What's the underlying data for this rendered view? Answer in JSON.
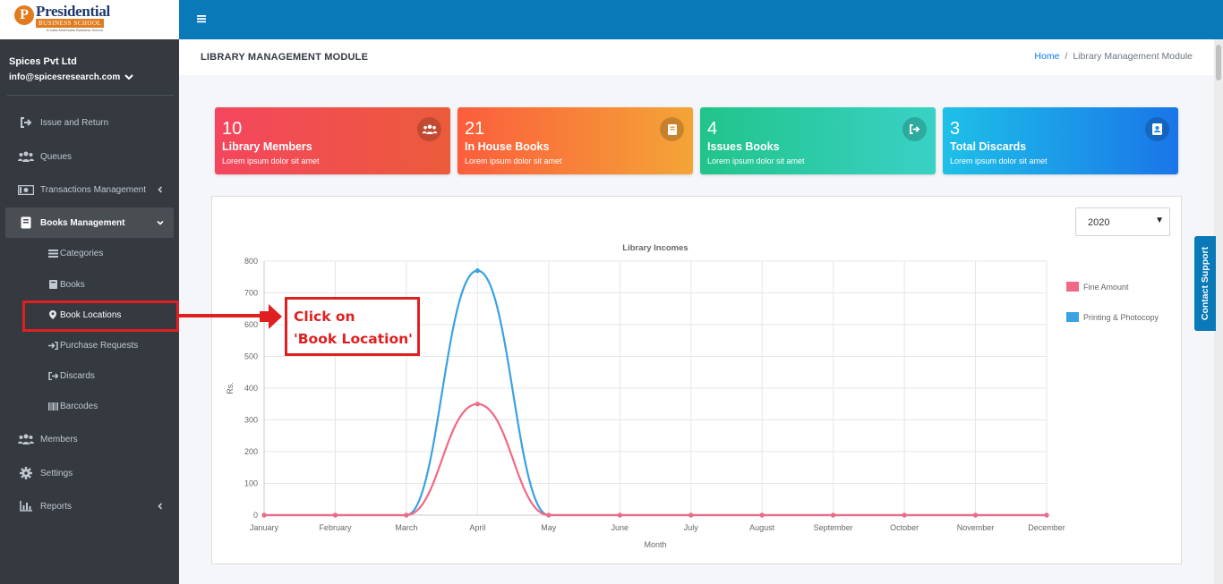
{
  "brand": {
    "logo_letter": "P",
    "logo_title": "Presidential",
    "logo_subtitle": "BUSINESS SCHOOL",
    "logo_tagline": "A India Americans Business School"
  },
  "user": {
    "company": "Spices Pvt Ltd",
    "email": "info@spicesresearch.com"
  },
  "sidebar": {
    "items": [
      {
        "label": "Issue and Return",
        "icon": "sign-out-icon"
      },
      {
        "label": "Queues",
        "icon": "users-icon"
      },
      {
        "label": "Transactions Management",
        "icon": "money-icon"
      },
      {
        "label": "Books Management",
        "icon": "book-icon"
      },
      {
        "label": "Members",
        "icon": "users-icon"
      },
      {
        "label": "Settings",
        "icon": "gear-icon"
      },
      {
        "label": "Reports",
        "icon": "bar-chart-icon"
      }
    ],
    "sub_items": [
      {
        "label": "Categories",
        "icon": "list-icon"
      },
      {
        "label": "Books",
        "icon": "book-icon"
      },
      {
        "label": "Book Locations",
        "icon": "map-marker-icon"
      },
      {
        "label": "Purchase Requests",
        "icon": "sign-in-icon"
      },
      {
        "label": "Discards",
        "icon": "sign-out-icon"
      },
      {
        "label": "Barcodes",
        "icon": "barcode-icon"
      }
    ]
  },
  "header": {
    "title": "LIBRARY MANAGEMENT MODULE",
    "breadcrumb": {
      "home": "Home",
      "separator": "/",
      "current": "Library Management Module"
    }
  },
  "cards": [
    {
      "number": "10",
      "title": "Library Members",
      "subtitle": "Lorem ipsum dolor sit amet",
      "icon": "users-icon"
    },
    {
      "number": "21",
      "title": "In House Books",
      "subtitle": "Lorem ipsum dolor sit amet",
      "icon": "book-icon"
    },
    {
      "number": "4",
      "title": "Issues Books",
      "subtitle": "Lorem ipsum dolor sit amet",
      "icon": "sign-out-icon"
    },
    {
      "number": "3",
      "title": "Total Discards",
      "subtitle": "Lorem ipsum dolor sit amet",
      "icon": "address-book-icon"
    }
  ],
  "year_select": {
    "value": "2020"
  },
  "chart_data": {
    "type": "line",
    "title": "Library Incomes",
    "xlabel": "Month",
    "ylabel": "Rs.",
    "ylim": [
      0,
      800
    ],
    "yticks": [
      0,
      100,
      200,
      300,
      400,
      500,
      600,
      700,
      800
    ],
    "categories": [
      "January",
      "February",
      "March",
      "April",
      "May",
      "June",
      "July",
      "August",
      "September",
      "October",
      "November",
      "December"
    ],
    "series": [
      {
        "name": "Fine Amount",
        "color": "#f06a86",
        "values": [
          0,
          0,
          0,
          350,
          0,
          0,
          0,
          0,
          0,
          0,
          0,
          0
        ]
      },
      {
        "name": "Printing & Photocopy",
        "color": "#3aa1e4",
        "values": [
          0,
          0,
          0,
          770,
          0,
          0,
          0,
          0,
          0,
          0,
          0,
          0
        ]
      }
    ],
    "grid": true,
    "legend": "right"
  },
  "annotation": {
    "text": "Click on\n'Book Location'",
    "color": "#e02020"
  },
  "contact_support": {
    "label": "Contact Support"
  }
}
